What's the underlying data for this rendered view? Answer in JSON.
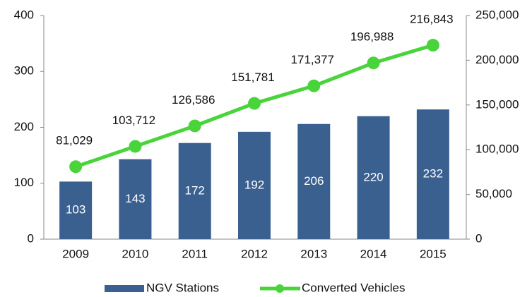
{
  "chart_data": {
    "type": "bar_line",
    "categories": [
      "2009",
      "2010",
      "2011",
      "2012",
      "2013",
      "2014",
      "2015"
    ],
    "series": [
      {
        "name": "NGV Stations",
        "color": "#3a6090",
        "type": "bar",
        "values": [
          103,
          143,
          172,
          192,
          206,
          220,
          232
        ]
      },
      {
        "name": "Converted Vehicles",
        "color": "#48d43a",
        "type": "line",
        "axis": "y2",
        "values": [
          81029,
          103712,
          126586,
          151781,
          171377,
          196988,
          216843
        ],
        "value_labels": [
          "81,029",
          "103,712",
          "126,586",
          "151,781",
          "171,377",
          "196,988",
          "216,843"
        ]
      }
    ],
    "ylim": [
      0,
      400
    ],
    "yticks": [
      0,
      100,
      200,
      300,
      400
    ],
    "y2lim": [
      0,
      250000
    ],
    "y2ticks": [
      0,
      {
        "value": 50000,
        "label": "50,000"
      },
      {
        "value": 100000,
        "label": "100,000"
      },
      {
        "value": 150000,
        "label": "150,000"
      },
      {
        "value": 200000,
        "label": "200,000"
      },
      {
        "value": 250000,
        "label": "250,000"
      }
    ],
    "legend": "bottom"
  }
}
